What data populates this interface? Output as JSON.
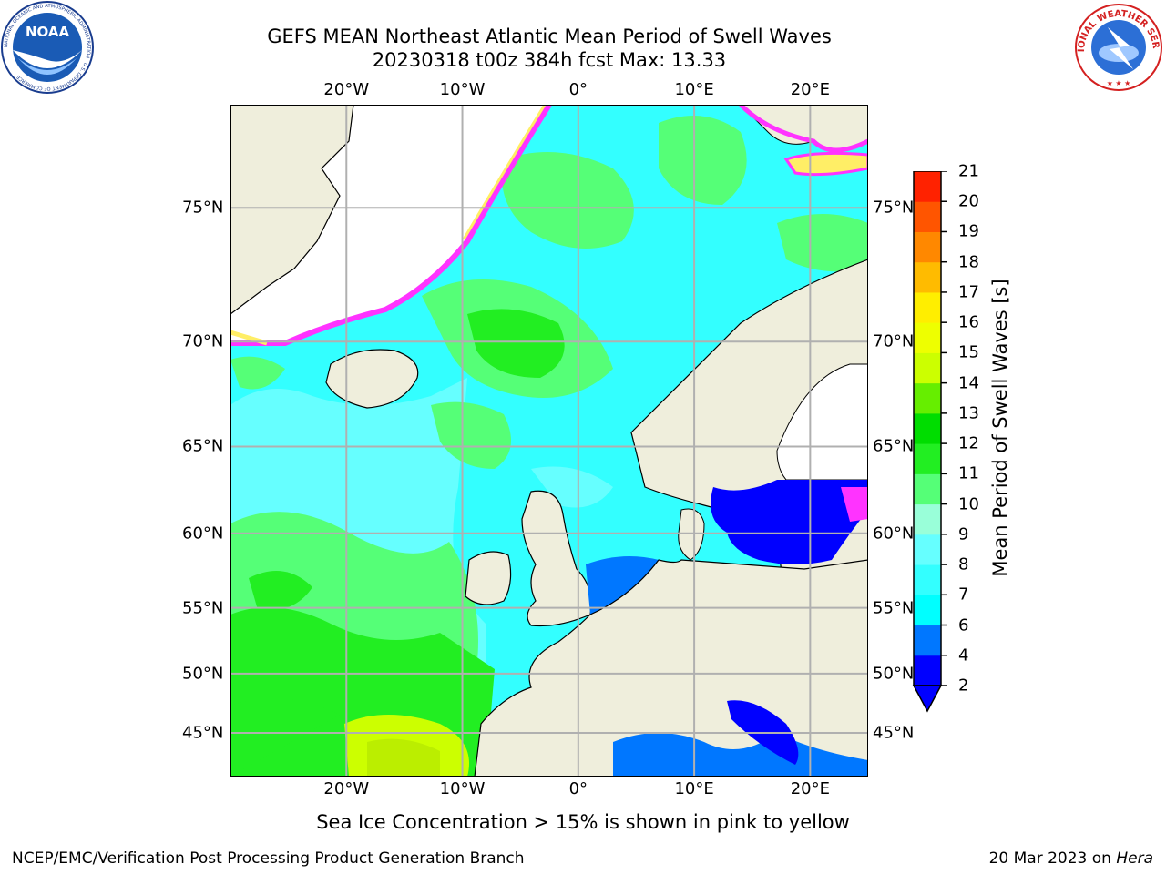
{
  "header": {
    "title_line1": "GEFS MEAN Northeast Atlantic Mean Period of Swell Waves",
    "title_line2": "20230318 t00z 384h fcst   Max: 13.33"
  },
  "map": {
    "projection": "lat-lon",
    "lon_range": [
      -30,
      25
    ],
    "lat_range": [
      41,
      78
    ],
    "grid": true,
    "lon_ticks": [
      {
        "lon": -20,
        "label": "20°W"
      },
      {
        "lon": -10,
        "label": "10°W"
      },
      {
        "lon": 0,
        "label": "0°"
      },
      {
        "lon": 10,
        "label": "10°E"
      },
      {
        "lon": 20,
        "label": "20°E"
      }
    ],
    "lat_ticks": [
      {
        "lat": 75,
        "label": "75°N"
      },
      {
        "lat": 70,
        "label": "70°N"
      },
      {
        "lat": 65,
        "label": "65°N"
      },
      {
        "lat": 60,
        "label": "60°N"
      },
      {
        "lat": 55,
        "label": "55°N"
      },
      {
        "lat": 50,
        "label": "50°N"
      },
      {
        "lat": 45,
        "label": "45°N"
      }
    ],
    "colors": {
      "land": "#efeedc",
      "ocean_base": "#33ffff",
      "grid": "#b0b0b0",
      "coast": "#000000",
      "ice_pink": "#ff33ff",
      "ice_yellow": "#ffee66"
    }
  },
  "colorbar": {
    "label": "Mean Period of Swell Waves [s]",
    "extend": "min",
    "levels": [
      2,
      4,
      6,
      7,
      8,
      9,
      10,
      11,
      12,
      13,
      14,
      15,
      16,
      17,
      18,
      19,
      20,
      21
    ],
    "tick_labels": [
      "2",
      "4",
      "6",
      "7",
      "8",
      "9",
      "10",
      "11",
      "12",
      "13",
      "14",
      "15",
      "16",
      "17",
      "18",
      "19",
      "20",
      "21"
    ],
    "colors": [
      "#0000ff",
      "#0077ff",
      "#00ffff",
      "#33ffff",
      "#66ffff",
      "#99ffd9",
      "#55ff77",
      "#22ee22",
      "#00dd00",
      "#66ee00",
      "#ccff00",
      "#eeff00",
      "#ffee00",
      "#ffbb00",
      "#ff8800",
      "#ff5500",
      "#ff2200"
    ]
  },
  "logos": {
    "noaa": {
      "icon": "noaa-logo-icon",
      "text": "NOAA",
      "ring_text": "NATIONAL OCEANIC AND ATMOSPHERIC ADMINISTRATION · U.S. DEPARTMENT OF COMMERCE"
    },
    "nws": {
      "icon": "nws-logo-icon",
      "ring_text": "NATIONAL WEATHER SERVICE"
    }
  },
  "note": "Sea Ice Concentration > 15% is shown in pink to yellow",
  "footer": {
    "left": "NCEP/EMC/Verification Post Processing Product Generation Branch",
    "right_date": "20 Mar 2023 on ",
    "right_host": "Hera"
  }
}
